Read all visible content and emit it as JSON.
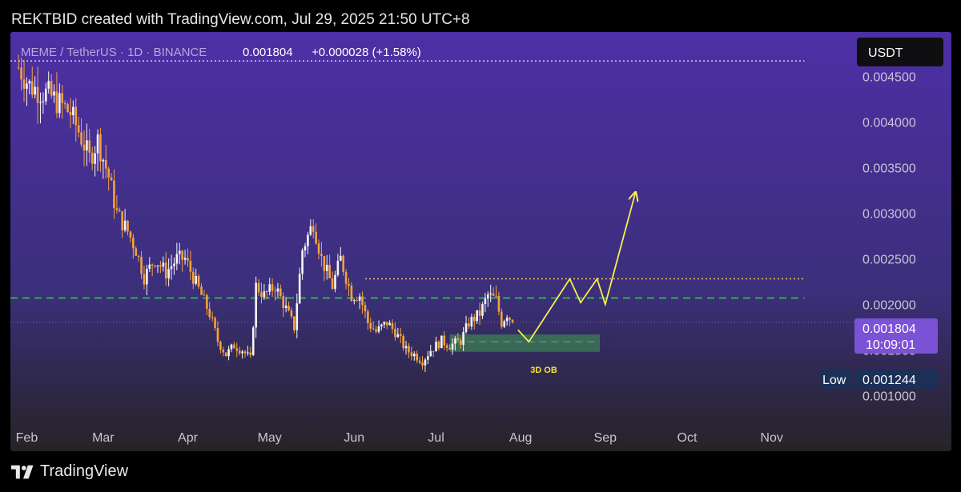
{
  "header": {
    "text": "REKTBID created with TradingView.com, Jul 29, 2025 21:50 UTC+8"
  },
  "symbol_bar": {
    "symbol": "MEME / TetherUS · 1D · BINANCE",
    "price": "0.001804",
    "change": "+0.000028 (+1.58%)"
  },
  "currency_badge": "USDT",
  "current_price_tag": {
    "price": "0.001804",
    "countdown": "10:09:01"
  },
  "low_tag": {
    "label": "Low",
    "value": "0.001244"
  },
  "ob_label": "3D OB",
  "footer": {
    "brand": "TradingView"
  },
  "colors": {
    "bg_top": "#4e2fa6",
    "bg_bottom": "#262326",
    "candle_up": "#f5f5f5",
    "candle_down": "#f3a23b",
    "support_line": "#2fd34a",
    "resistance_line": "#f2d16b",
    "projection": "#f5f04d",
    "ob_zone": "#3e7f55",
    "price_tag": "#7b52d6",
    "low_tag": "#1b2f57",
    "axis_text": "#c9c4d6"
  },
  "icons": {
    "logo": "tradingview-logo-icon"
  },
  "chart_data": {
    "type": "candlestick",
    "title": "MEME / TetherUS",
    "interval": "1D",
    "exchange": "BINANCE",
    "y_axis_ticks": [
      0.0045,
      0.004,
      0.0035,
      0.003,
      0.0025,
      0.002,
      0.0015,
      0.001
    ],
    "y_tick_labels": [
      "0.004500",
      "0.004000",
      "0.003500",
      "0.003000",
      "0.002500",
      "0.002000",
      "0.001500",
      "0.001000"
    ],
    "ylim": [
      0.00082,
      0.00475
    ],
    "x_axis_ticks": [
      "2025-02-01",
      "2025-03-01",
      "2025-04-01",
      "2025-05-01",
      "2025-06-01",
      "2025-07-01",
      "2025-08-01",
      "2025-09-01",
      "2025-10-01",
      "2025-11-01"
    ],
    "x_tick_labels": [
      "Feb",
      "Mar",
      "Apr",
      "May",
      "Jun",
      "Jul",
      "Aug",
      "Sep",
      "Oct",
      "Nov"
    ],
    "xlim": [
      "2025-01-26",
      "2025-11-24"
    ],
    "price_points": [
      [
        "2025-01-29",
        0.0046
      ],
      [
        "2025-02-02",
        0.0044
      ],
      [
        "2025-02-05",
        0.00435
      ],
      [
        "2025-02-09",
        0.0043
      ],
      [
        "2025-02-13",
        0.0042
      ],
      [
        "2025-02-17",
        0.0041
      ],
      [
        "2025-02-20",
        0.0039
      ],
      [
        "2025-02-24",
        0.0036
      ],
      [
        "2025-02-27",
        0.0038
      ],
      [
        "2025-03-03",
        0.0034
      ],
      [
        "2025-03-06",
        0.003
      ],
      [
        "2025-03-10",
        0.0028
      ],
      [
        "2025-03-13",
        0.0026
      ],
      [
        "2025-03-16",
        0.0023
      ],
      [
        "2025-03-20",
        0.0025
      ],
      [
        "2025-03-24",
        0.00235
      ],
      [
        "2025-03-28",
        0.0025
      ],
      [
        "2025-03-31",
        0.0025
      ],
      [
        "2025-04-03",
        0.0023
      ],
      [
        "2025-04-06",
        0.0021
      ],
      [
        "2025-04-09",
        0.0019
      ],
      [
        "2025-04-12",
        0.0016
      ],
      [
        "2025-04-15",
        0.00145
      ],
      [
        "2025-04-18",
        0.00155
      ],
      [
        "2025-04-21",
        0.0015
      ],
      [
        "2025-04-24",
        0.0014
      ],
      [
        "2025-04-26",
        0.0022
      ],
      [
        "2025-04-29",
        0.0021
      ],
      [
        "2025-05-03",
        0.0022
      ],
      [
        "2025-05-07",
        0.00195
      ],
      [
        "2025-05-10",
        0.00175
      ],
      [
        "2025-05-13",
        0.0026
      ],
      [
        "2025-05-17",
        0.0029
      ],
      [
        "2025-05-20",
        0.0025
      ],
      [
        "2025-05-24",
        0.0022
      ],
      [
        "2025-05-27",
        0.0025
      ],
      [
        "2025-05-31",
        0.0021
      ],
      [
        "2025-06-03",
        0.0021
      ],
      [
        "2025-06-06",
        0.0018
      ],
      [
        "2025-06-09",
        0.0017
      ],
      [
        "2025-06-13",
        0.0018
      ],
      [
        "2025-06-16",
        0.0017
      ],
      [
        "2025-06-20",
        0.0015
      ],
      [
        "2025-06-23",
        0.00145
      ],
      [
        "2025-06-26",
        0.00138
      ],
      [
        "2025-06-29",
        0.0015
      ],
      [
        "2025-07-03",
        0.0016
      ],
      [
        "2025-07-06",
        0.00155
      ],
      [
        "2025-07-10",
        0.0016
      ],
      [
        "2025-07-13",
        0.0018
      ],
      [
        "2025-07-17",
        0.0019
      ],
      [
        "2025-07-20",
        0.0021
      ],
      [
        "2025-07-23",
        0.00205
      ],
      [
        "2025-07-25",
        0.0018
      ],
      [
        "2025-07-27",
        0.0019
      ],
      [
        "2025-07-29",
        0.001804
      ]
    ],
    "current_price": 0.001804,
    "period_low": 0.001244,
    "lines": [
      {
        "name": "support",
        "y": 0.00207,
        "style": "dashed",
        "from": "2025-01-26",
        "to": "2025-11-13"
      },
      {
        "name": "resistance",
        "y": 0.00228,
        "style": "dotted",
        "from": "2025-06-05",
        "to": "2025-11-13"
      },
      {
        "name": "top-dotted",
        "y": 0.00467,
        "style": "dotted",
        "from": "2025-01-26",
        "to": "2025-11-13"
      },
      {
        "name": "ob-midline",
        "y": 0.00159,
        "style": "dashed",
        "from": "2025-07-08",
        "to": "2025-08-30"
      }
    ],
    "ob_zone": {
      "label": "3D OB",
      "from": "2025-07-06",
      "to": "2025-08-30",
      "y_low": 0.00148,
      "y_high": 0.00167
    },
    "projection_path": [
      [
        "2025-07-31",
        0.00172
      ],
      [
        "2025-08-04",
        0.00159
      ],
      [
        "2025-08-19",
        0.00228
      ],
      [
        "2025-08-23",
        0.00202
      ],
      [
        "2025-08-29",
        0.00228
      ],
      [
        "2025-09-01",
        0.002
      ],
      [
        "2025-09-12",
        0.00322
      ]
    ]
  }
}
